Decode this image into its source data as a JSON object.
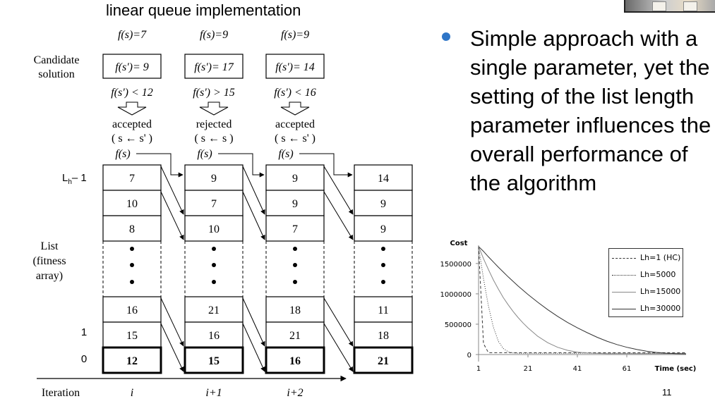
{
  "slide": {
    "title": "linear queue implementation",
    "bullet": "Simple approach with a single parameter, yet the setting of the list length parameter influences the overall performance of the algorithm",
    "page_number": "11"
  },
  "diagram": {
    "row_labels": {
      "candidate": [
        "Candidate",
        "solution"
      ],
      "list": [
        "List",
        "(fitness",
        "array)"
      ],
      "lh": "L",
      "lh_sub": "h",
      "lh_suffix": "– 1",
      "one": "1",
      "zero": "0",
      "iteration": "Iteration"
    },
    "columns": [
      {
        "fs": "f(s)=7",
        "candidate": "f(s')= 9",
        "compare": "f(s') < 12",
        "decision": "accepted",
        "update": "( s ← s' )",
        "fs_label": "f(s)",
        "iteration": "i",
        "top": [
          "7",
          "10",
          "8"
        ],
        "bottom": [
          "16",
          "15",
          "12"
        ]
      },
      {
        "fs": "f(s)=9",
        "candidate": "f(s')= 17",
        "compare": "f(s') > 15",
        "decision": "rejected",
        "update": "( s ← s )",
        "fs_label": "f(s)",
        "iteration": "i+1",
        "top": [
          "9",
          "7",
          "10"
        ],
        "bottom": [
          "21",
          "16",
          "15"
        ]
      },
      {
        "fs": "f(s)=9",
        "candidate": "f(s')= 14",
        "compare": "f(s') < 16",
        "decision": "accepted",
        "update": "( s ← s' )",
        "fs_label": "f(s)",
        "iteration": "i+2",
        "top": [
          "9",
          "9",
          "7"
        ],
        "bottom": [
          "18",
          "21",
          "16"
        ]
      },
      {
        "top": [
          "14",
          "9",
          "9"
        ],
        "bottom": [
          "11",
          "18",
          "21"
        ]
      }
    ]
  },
  "chart_data": {
    "type": "line",
    "title": "",
    "ylabel": "Cost",
    "xlabel": "Time (sec)",
    "xlim": [
      1,
      85
    ],
    "ylim": [
      0,
      1800000
    ],
    "x_ticks": [
      "1",
      "21",
      "41",
      "61"
    ],
    "y_ticks": [
      "0",
      "500000",
      "1000000",
      "1500000"
    ],
    "x": [
      1,
      3,
      5,
      7,
      9,
      11,
      13,
      15,
      17,
      19,
      21,
      25,
      29,
      33,
      37,
      41,
      45,
      49,
      53,
      57,
      61,
      65,
      69,
      73,
      77,
      81,
      85
    ],
    "series": [
      {
        "name": "Lh=1 (HC)",
        "dash": "4,3",
        "values": [
          1780000,
          180000,
          30000,
          30000,
          30000,
          30000,
          30000,
          30000,
          30000,
          30000,
          30000,
          30000,
          30000,
          30000,
          30000,
          30000,
          30000,
          30000,
          30000,
          30000,
          30000,
          30000,
          30000,
          30000,
          30000,
          30000,
          30000
        ]
      },
      {
        "name": "Lh=5000",
        "dash": "1,2",
        "values": [
          1780000,
          1250000,
          800000,
          450000,
          220000,
          100000,
          45000,
          25000,
          20000,
          20000,
          20000,
          20000,
          20000,
          20000,
          20000,
          20000,
          20000,
          20000,
          20000,
          20000,
          20000,
          20000,
          20000,
          20000,
          20000,
          20000,
          20000
        ]
      },
      {
        "name": "Lh=15000",
        "dash": "",
        "color": "#888888",
        "values": [
          1780000,
          1580000,
          1400000,
          1230000,
          1080000,
          940000,
          820000,
          710000,
          610000,
          520000,
          440000,
          300000,
          195000,
          120000,
          70000,
          40000,
          25000,
          18000,
          15000,
          15000,
          15000,
          15000,
          15000,
          15000,
          15000,
          15000,
          15000
        ]
      },
      {
        "name": "Lh=30000",
        "dash": "",
        "color": "#333333",
        "values": [
          1780000,
          1700000,
          1610000,
          1525000,
          1440000,
          1360000,
          1280000,
          1205000,
          1130000,
          1060000,
          990000,
          860000,
          740000,
          630000,
          530000,
          440000,
          360000,
          285000,
          220000,
          165000,
          120000,
          85000,
          55000,
          35000,
          22000,
          15000,
          12000
        ]
      }
    ],
    "legend_position": "top-right",
    "grid": false
  },
  "colors": {
    "bullet": "#2e75c7"
  },
  "icons": [
    "down-arrow-icon",
    "bullet-dot-icon"
  ]
}
